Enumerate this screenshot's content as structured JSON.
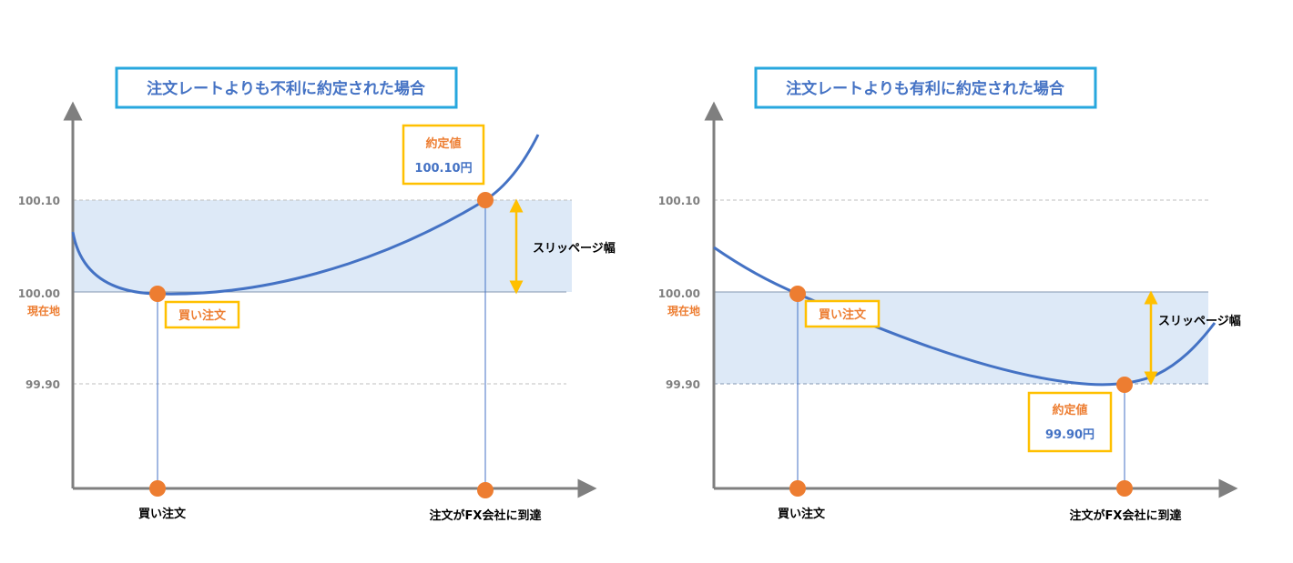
{
  "colors": {
    "title_border": "#27a7de",
    "label_border": "#ffc000",
    "axis": "#7f7f7f",
    "curve": "#4472c4",
    "marker": "#ed7d31",
    "band": "#dde9f7",
    "arrow": "#ffc000"
  },
  "left": {
    "title": "注文レートよりも不利に約定された場合",
    "tick_top": "100.10",
    "tick_mid": "100.00",
    "tick_mid_sub": "現在地",
    "tick_low": "99.90",
    "order_label": "買い注文",
    "fill_label": "約定値",
    "fill_value": "100.10円",
    "slippage_label": "スリッページ幅",
    "x_label_order": "買い注文",
    "x_label_arrival": "注文がFX会社に到達"
  },
  "right": {
    "title": "注文レートよりも有利に約定された場合",
    "tick_top": "100.10",
    "tick_mid": "100.00",
    "tick_mid_sub": "現在地",
    "tick_low": "99.90",
    "order_label": "買い注文",
    "fill_label": "約定値",
    "fill_value": "99.90円",
    "slippage_label": "スリッページ幅",
    "x_label_order": "買い注文",
    "x_label_arrival": "注文がFX会社に到達"
  }
}
